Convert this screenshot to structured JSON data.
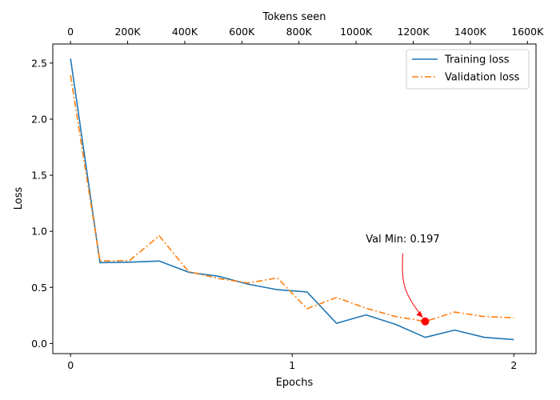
{
  "chart_data": {
    "type": "line",
    "title": "",
    "xlabel": "Epochs",
    "ylabel": "Loss",
    "top_xlabel": "Tokens seen",
    "xlim": [
      -0.08,
      2.1
    ],
    "ylim": [
      -0.09,
      2.67
    ],
    "x_ticks": [
      0,
      1,
      2
    ],
    "x_tick_labels": [
      "0",
      "1",
      "2"
    ],
    "y_ticks": [
      0.0,
      0.5,
      1.0,
      1.5,
      2.0,
      2.5
    ],
    "y_tick_labels": [
      "0.0",
      "0.5",
      "1.0",
      "1.5",
      "2.0",
      "2.5"
    ],
    "top_x_ticks": [
      0,
      200000,
      400000,
      600000,
      800000,
      1000000,
      1200000,
      1400000,
      1600000
    ],
    "top_x_tick_labels": [
      "0",
      "200K",
      "400K",
      "600K",
      "800K",
      "1000K",
      "1200K",
      "1400K",
      "1600K"
    ],
    "top_xlim": [
      -62000,
      1630000
    ],
    "grid": false,
    "legend_position": "top-right",
    "series": [
      {
        "name": "Training loss",
        "color": "#1f77b4",
        "style": "solid",
        "x": [
          0,
          0.133,
          0.267,
          0.4,
          0.533,
          0.667,
          0.8,
          0.933,
          1.067,
          1.2,
          1.333,
          1.467,
          1.6,
          1.733,
          1.867,
          2.0
        ],
        "y": [
          2.54,
          0.72,
          0.725,
          0.735,
          0.635,
          0.6,
          0.53,
          0.48,
          0.46,
          0.18,
          0.255,
          0.17,
          0.055,
          0.12,
          0.055,
          0.035
        ]
      },
      {
        "name": "Validation loss",
        "color": "#ff7f0e",
        "style": "dashdot",
        "x": [
          0,
          0.133,
          0.267,
          0.4,
          0.533,
          0.667,
          0.8,
          0.933,
          1.067,
          1.2,
          1.333,
          1.467,
          1.6,
          1.733,
          1.867,
          2.0
        ],
        "y": [
          2.39,
          0.735,
          0.74,
          0.96,
          0.64,
          0.58,
          0.54,
          0.585,
          0.31,
          0.41,
          0.315,
          0.24,
          0.197,
          0.28,
          0.24,
          0.23
        ]
      }
    ],
    "annotation": {
      "text": "Val Min: 0.197",
      "point": [
        1.6,
        0.197
      ],
      "marker_color": "#ff0000",
      "arrow_color": "#ff0000"
    }
  }
}
